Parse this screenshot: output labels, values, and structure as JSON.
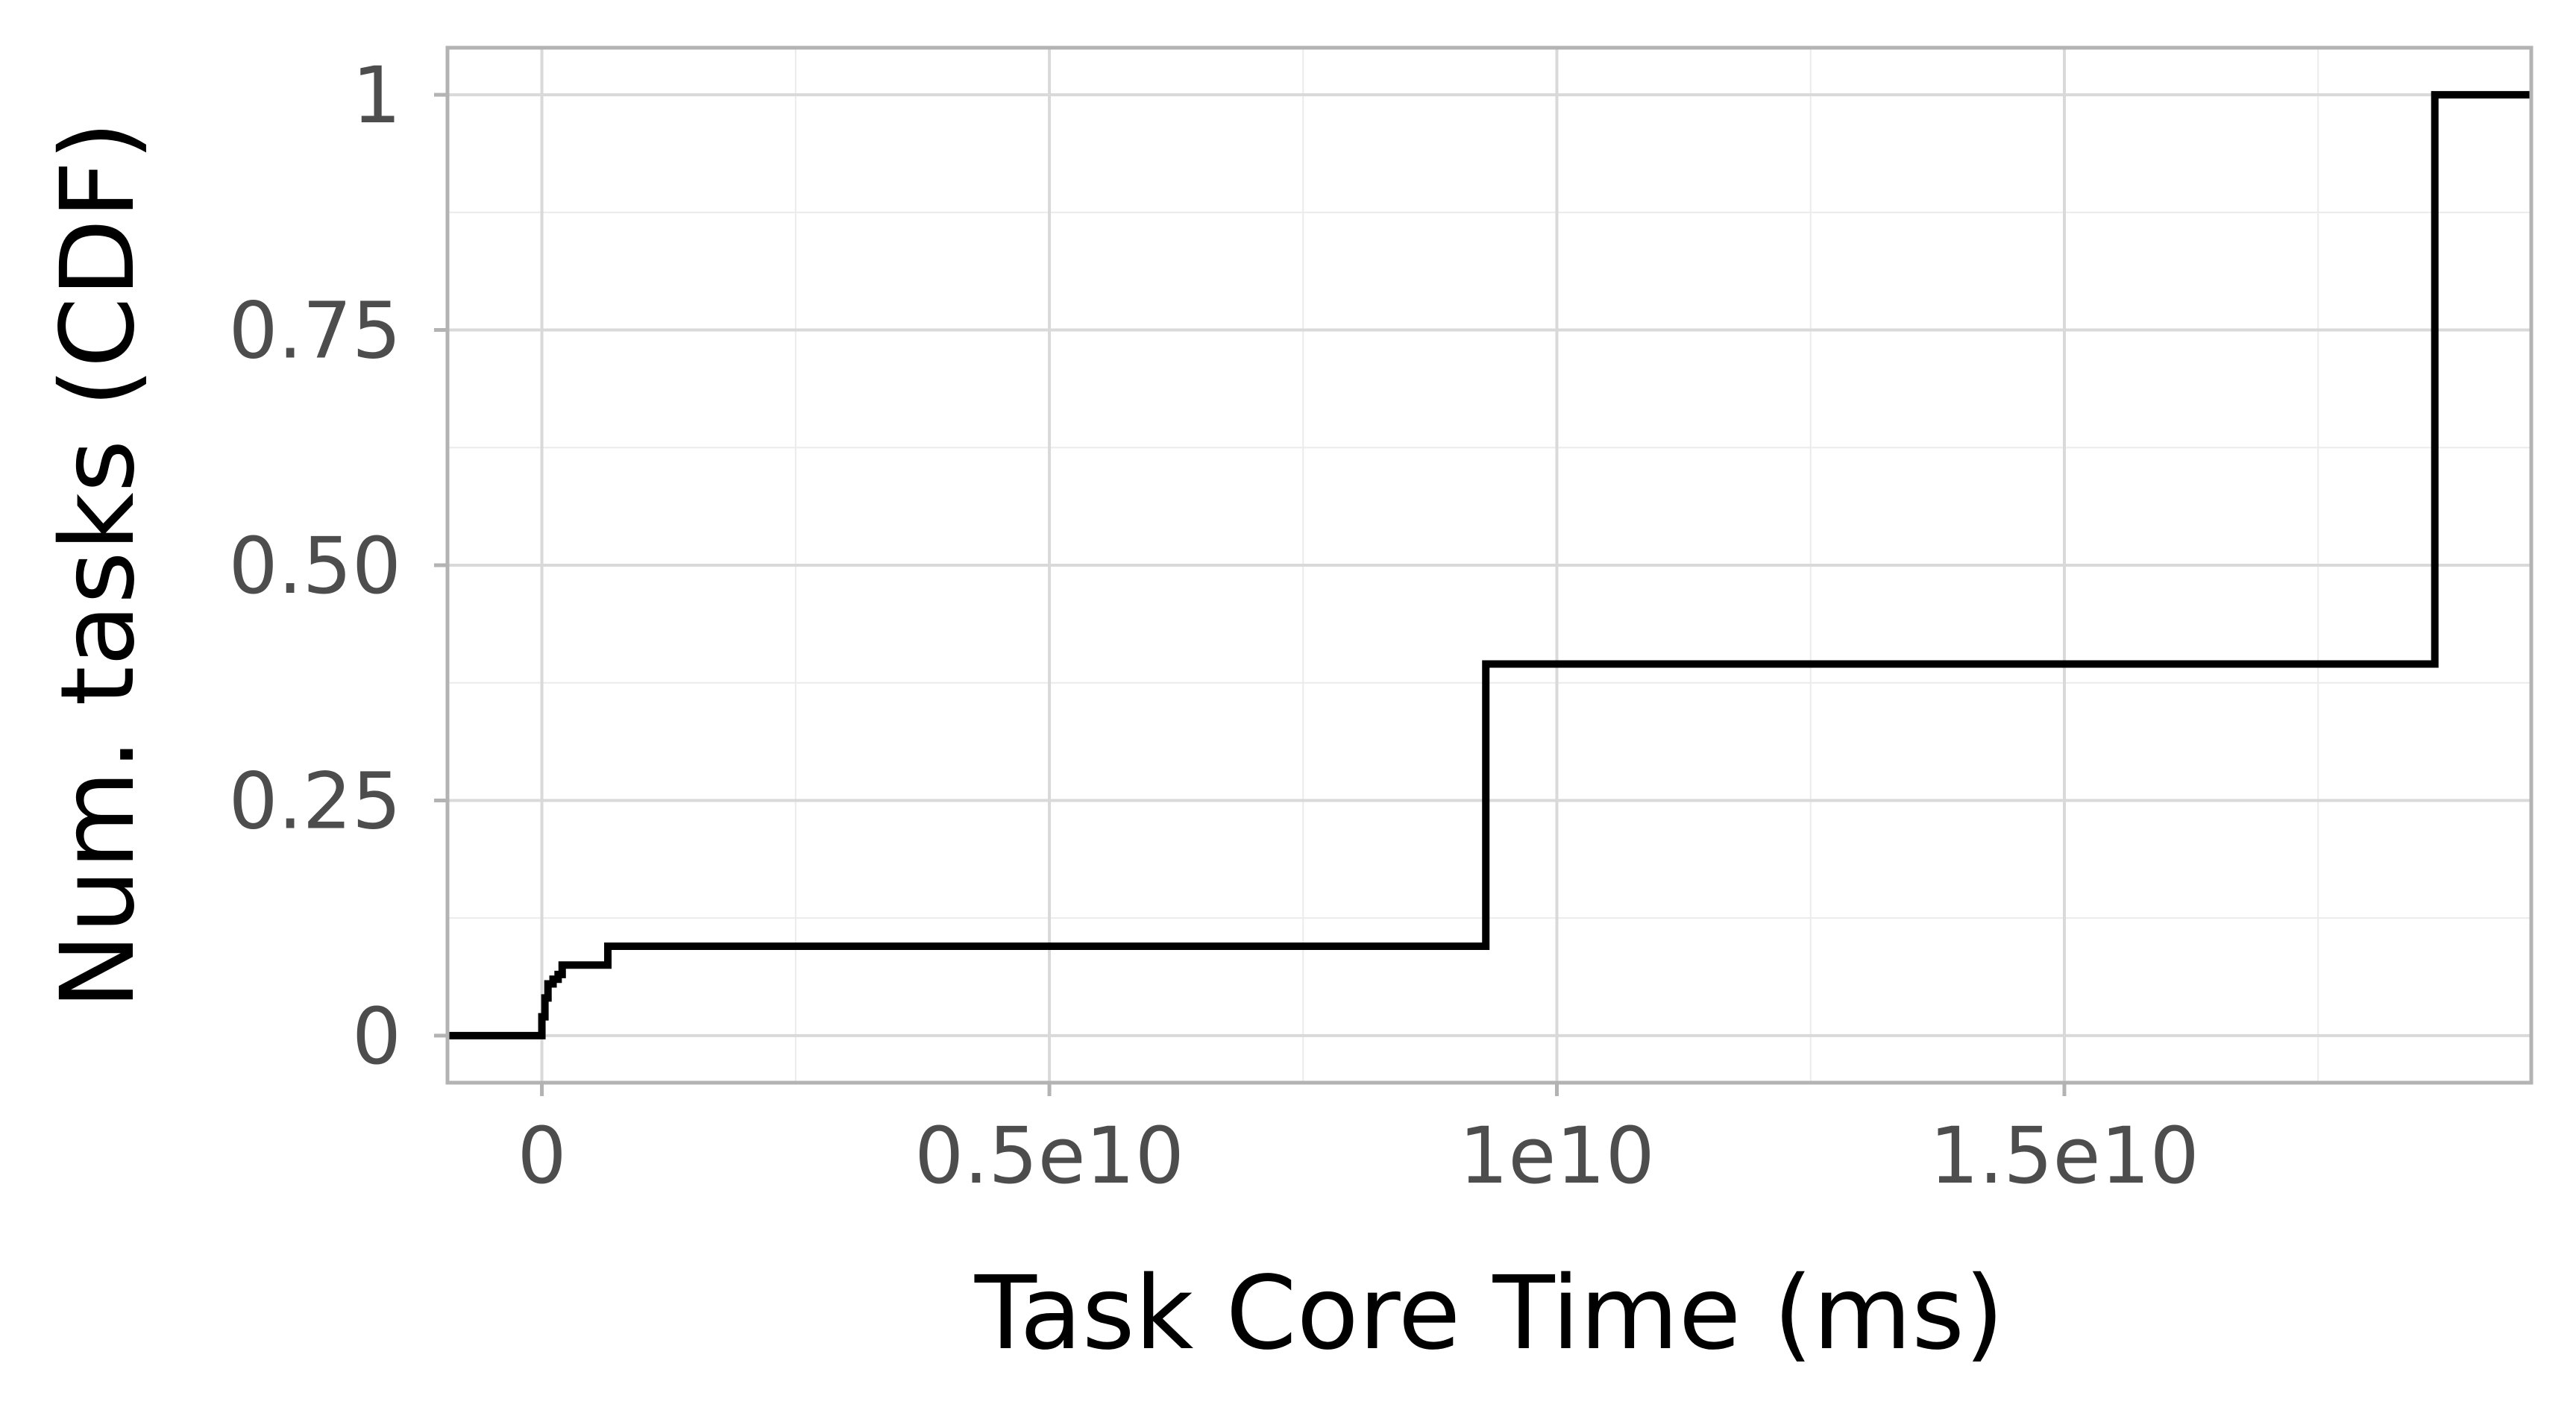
{
  "chart_data": {
    "type": "line",
    "step": true,
    "xlabel": "Task Core Time (ms)",
    "ylabel": "Num. tasks (CDF)",
    "xlim": [
      -930000000,
      19600000000
    ],
    "ylim": [
      -0.05,
      1.05
    ],
    "xticks": [
      {
        "value": 0,
        "label": "0"
      },
      {
        "value": 5000000000,
        "label": "0.5e10"
      },
      {
        "value": 10000000000,
        "label": "1e10"
      },
      {
        "value": 15000000000,
        "label": "1.5e10"
      }
    ],
    "yticks": [
      {
        "value": 0,
        "label": "0"
      },
      {
        "value": 0.25,
        "label": "0.25"
      },
      {
        "value": 0.5,
        "label": "0.50"
      },
      {
        "value": 0.75,
        "label": "0.75"
      },
      {
        "value": 1,
        "label": "1"
      }
    ],
    "grid": true,
    "legend": "none",
    "series": [
      {
        "color": "#000000",
        "x": [
          -930000000,
          0,
          30000000,
          60000000,
          110000000,
          160000000,
          200000000,
          650000000,
          9300000000,
          18650000000,
          19600000000
        ],
        "y": [
          0,
          0.02,
          0.04,
          0.055,
          0.06,
          0.065,
          0.075,
          0.095,
          0.395,
          1.0,
          1.0
        ]
      }
    ]
  }
}
